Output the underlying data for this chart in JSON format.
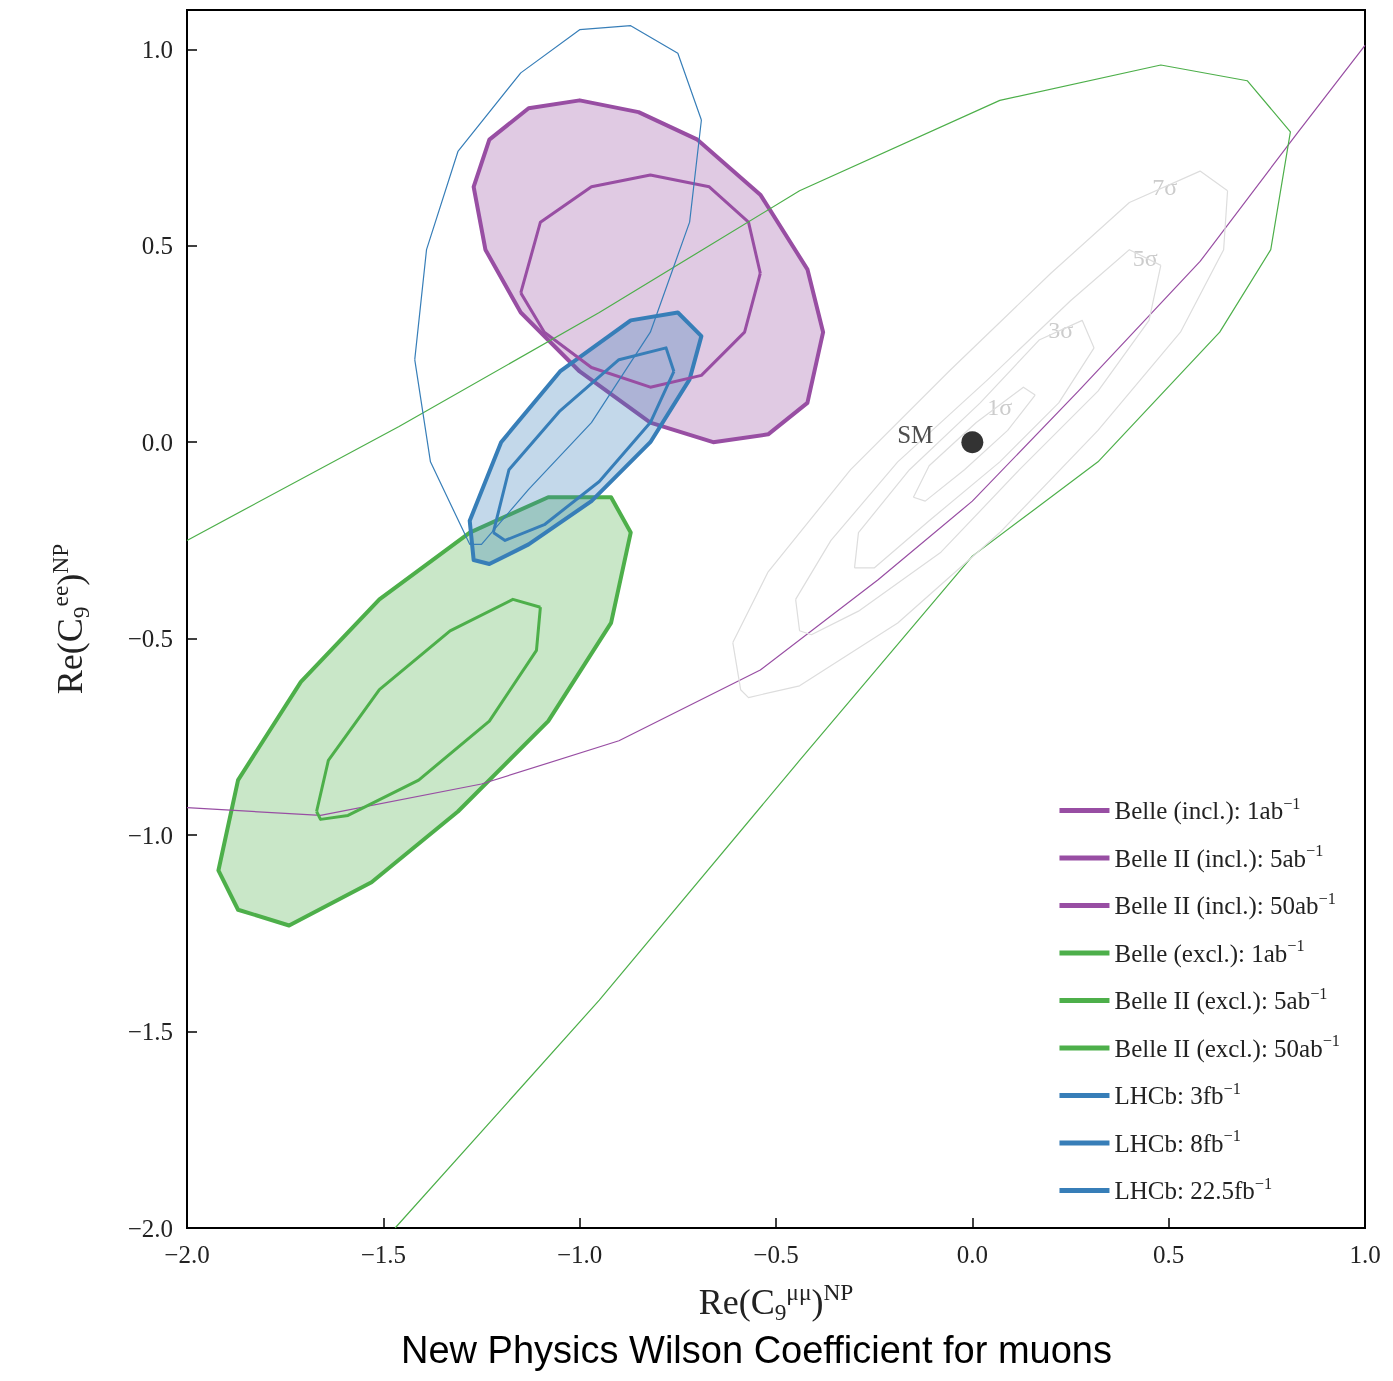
{
  "chart_data": {
    "type": "line",
    "xlabel": "Re(C$_{9}$$^{μμ}$)$^{NP}$",
    "ylabel": "Re(C$_{9}$$^{ee}$)$^{NP}$",
    "xlim": [
      -2,
      1
    ],
    "ylim": [
      -2,
      1.1
    ],
    "xticks": [
      {
        "value": -2,
        "label": "−2.0"
      },
      {
        "value": -1.5,
        "label": "−1.5"
      },
      {
        "value": -1,
        "label": "−1.0"
      },
      {
        "value": -0.5,
        "label": "−0.5"
      },
      {
        "value": 0,
        "label": "0.0"
      },
      {
        "value": 0.5,
        "label": "0.5"
      },
      {
        "value": 1,
        "label": "1.0"
      }
    ],
    "yticks": [
      {
        "value": -2,
        "label": "−2.0"
      },
      {
        "value": -1.5,
        "label": "−1.5"
      },
      {
        "value": -1,
        "label": "−1.0"
      },
      {
        "value": -0.5,
        "label": "−0.5"
      },
      {
        "value": 0,
        "label": "0.0"
      },
      {
        "value": 0.5,
        "label": "0.5"
      },
      {
        "value": 1,
        "label": "1.0"
      }
    ],
    "grid": false,
    "legend": "bottom right",
    "series": [
      {
        "name": "Belle (incl.): 1ab$^{−1}$",
        "color": "#984ea3",
        "x": [
          -2,
          -1.66,
          -1.25,
          -0.9,
          -0.54,
          -0.24,
          0,
          0.27,
          0.58,
          0.83,
          1.0
        ],
        "values": [
          -0.93,
          -0.95,
          -0.87,
          -0.76,
          -0.58,
          -0.35,
          -0.15,
          0.13,
          0.46,
          0.79,
          1.01
        ]
      },
      {
        "name": "Belle II (incl.): 5ab$^{−1}$",
        "type": "area",
        "color": "#984ea3",
        "x": [
          -1.27,
          -1.23,
          -1.13,
          -1.0,
          -0.85,
          -0.7,
          -0.54,
          -0.42,
          -0.38,
          -0.42,
          -0.52,
          -0.66,
          -0.82,
          -1.0,
          -1.15,
          -1.24
        ],
        "values": [
          0.65,
          0.77,
          0.85,
          0.87,
          0.84,
          0.77,
          0.63,
          0.44,
          0.28,
          0.1,
          0.02,
          0.0,
          0.05,
          0.18,
          0.33,
          0.49
        ]
      },
      {
        "name": "Belle II (incl.): 50ab$^{−1}$",
        "color": "#984ea3",
        "x": [
          -1.15,
          -1.1,
          -0.97,
          -0.82,
          -0.67,
          -0.57,
          -0.54,
          -0.58,
          -0.69,
          -0.82,
          -0.97,
          -1.09,
          -1.15
        ],
        "values": [
          0.38,
          0.56,
          0.65,
          0.68,
          0.65,
          0.56,
          0.43,
          0.28,
          0.17,
          0.14,
          0.19,
          0.28,
          0.38
        ]
      },
      {
        "name": "Belle (excl.): 1ab$^{−1}$",
        "color": "#4daf4a",
        "x": [
          -2,
          -1.46,
          -0.95,
          -0.44,
          0.07,
          0.48,
          0.7,
          0.81,
          0.76,
          0.63,
          0.32,
          0,
          -0.44,
          -0.95,
          -1.47
        ],
        "values": [
          -0.25,
          0.04,
          0.33,
          0.64,
          0.87,
          0.96,
          0.92,
          0.79,
          0.49,
          0.28,
          -0.05,
          -0.29,
          -0.81,
          -1.42,
          -2.0
        ]
      },
      {
        "name": "Belle II (excl.): 5ab$^{−1}$",
        "type": "area",
        "color": "#4daf4a",
        "x": [
          -1.92,
          -1.87,
          -1.71,
          -1.51,
          -1.28,
          -1.08,
          -0.92,
          -0.87,
          -0.92,
          -1.08,
          -1.31,
          -1.53,
          -1.74,
          -1.87
        ],
        "values": [
          -1.09,
          -0.86,
          -0.61,
          -0.4,
          -0.23,
          -0.14,
          -0.14,
          -0.23,
          -0.46,
          -0.71,
          -0.94,
          -1.12,
          -1.23,
          -1.19
        ]
      },
      {
        "name": "Belle II (excl.): 50ab$^{−1}$",
        "color": "#4daf4a",
        "x": [
          -1.67,
          -1.64,
          -1.51,
          -1.33,
          -1.17,
          -1.1,
          -1.11,
          -1.23,
          -1.41,
          -1.59,
          -1.66,
          -1.67
        ],
        "values": [
          -0.94,
          -0.81,
          -0.63,
          -0.48,
          -0.4,
          -0.42,
          -0.53,
          -0.71,
          -0.86,
          -0.95,
          -0.96,
          -0.94
        ]
      },
      {
        "name": "LHCb: 3fb$^{−1}$",
        "color": "#377eb8",
        "x": [
          -1.28,
          -1.38,
          -1.42,
          -1.39,
          -1.31,
          -1.15,
          -1.0,
          -0.87,
          -0.75,
          -0.69,
          -0.72,
          -0.82,
          -0.97,
          -1.13,
          -1.25,
          -1.28
        ],
        "values": [
          -0.26,
          -0.05,
          0.21,
          0.49,
          0.74,
          0.94,
          1.05,
          1.06,
          0.99,
          0.82,
          0.56,
          0.28,
          0.05,
          -0.12,
          -0.26,
          -0.26
        ]
      },
      {
        "name": "LHCb: 8fb$^{−1}$",
        "type": "area",
        "color": "#377eb8",
        "x": [
          -1.27,
          -1.28,
          -1.2,
          -1.05,
          -0.87,
          -0.75,
          -0.69,
          -0.72,
          -0.82,
          -0.97,
          -1.13,
          -1.23
        ],
        "values": [
          -0.3,
          -0.2,
          0.0,
          0.18,
          0.31,
          0.33,
          0.27,
          0.16,
          0.0,
          -0.15,
          -0.26,
          -0.31
        ]
      },
      {
        "name": "LHCb: 22.5fb$^{−1}$",
        "color": "#377eb8",
        "x": [
          -1.22,
          -1.18,
          -1.05,
          -0.9,
          -0.78,
          -0.76,
          -0.82,
          -0.95,
          -1.09,
          -1.19,
          -1.22
        ],
        "values": [
          -0.23,
          -0.07,
          0.08,
          0.21,
          0.24,
          0.18,
          0.05,
          -0.1,
          -0.21,
          -0.25,
          -0.23
        ]
      },
      {
        "color": "#dddddd",
        "x": [
          -0.59,
          -0.61,
          -0.52,
          -0.31,
          -0.06,
          0.2,
          0.4,
          0.58,
          0.65,
          0.64,
          0.53,
          0.32,
          0.07,
          -0.19,
          -0.44,
          -0.57,
          -0.59
        ],
        "values": [
          -0.63,
          -0.51,
          -0.33,
          -0.07,
          0.18,
          0.43,
          0.61,
          0.69,
          0.64,
          0.49,
          0.28,
          0.03,
          -0.23,
          -0.46,
          -0.62,
          -0.65,
          -0.63
        ]
      },
      {
        "color": "#dddddd",
        "x": [
          -0.44,
          -0.45,
          -0.36,
          -0.19,
          0.04,
          0.25,
          0.4,
          0.48,
          0.45,
          0.32,
          0.12,
          -0.08,
          -0.29,
          -0.41,
          -0.44
        ],
        "values": [
          -0.48,
          -0.4,
          -0.25,
          -0.05,
          0.16,
          0.36,
          0.49,
          0.45,
          0.31,
          0.13,
          -0.07,
          -0.28,
          -0.43,
          -0.49,
          -0.48
        ]
      },
      {
        "color": "#dddddd",
        "x": [
          -0.3,
          -0.29,
          -0.16,
          0.02,
          0.17,
          0.28,
          0.31,
          0.22,
          0.07,
          -0.11,
          -0.25,
          -0.3
        ],
        "values": [
          -0.32,
          -0.23,
          -0.07,
          0.1,
          0.26,
          0.31,
          0.24,
          0.1,
          -0.05,
          -0.2,
          -0.32,
          -0.32
        ]
      },
      {
        "color": "#dddddd",
        "x": [
          -0.15,
          -0.11,
          0.01,
          0.13,
          0.16,
          0.09,
          -0.02,
          -0.12,
          -0.15
        ],
        "values": [
          -0.14,
          -0.06,
          0.05,
          0.14,
          0.12,
          0.03,
          -0.07,
          -0.15,
          -0.14
        ]
      },
      {
        "name": "SM",
        "type": "scatter",
        "color": "#000000",
        "x": [
          0
        ],
        "values": [
          0
        ]
      }
    ],
    "annotations": [
      {
        "text": "7σ",
        "x": 0.49,
        "y": 0.65
      },
      {
        "text": "5σ",
        "x": 0.44,
        "y": 0.47
      },
      {
        "text": "3σ",
        "x": 0.225,
        "y": 0.285
      },
      {
        "text": "1σ",
        "x": 0.07,
        "y": 0.09
      },
      "New Physics Wilson Coefficient for muons"
    ]
  }
}
